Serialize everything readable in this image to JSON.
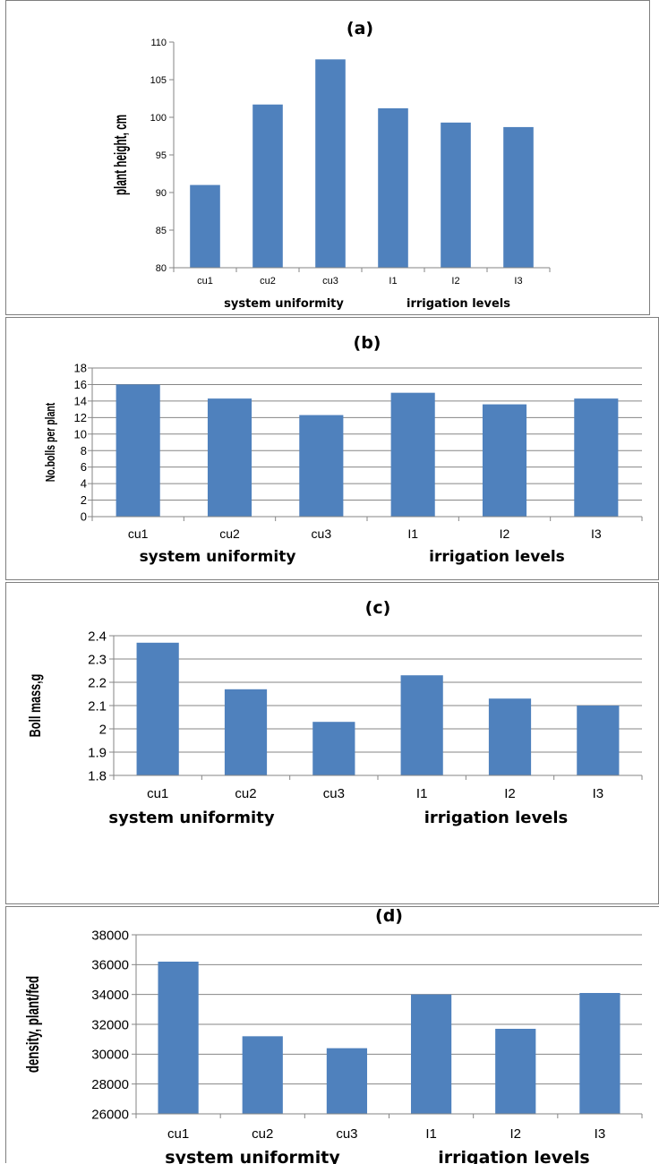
{
  "charts": {
    "bar_color": "#4F81BD",
    "grid_color": "#868686",
    "axis_color": "#868686"
  },
  "chart_data": [
    {
      "type": "bar",
      "title": "(a)",
      "ylabel": "plant height, cm",
      "categories": [
        "cu1",
        "cu2",
        "cu3",
        "I1",
        "I2",
        "I3"
      ],
      "values": [
        91,
        101.7,
        107.7,
        101.2,
        99.3,
        98.7
      ],
      "ylim": [
        80,
        110
      ],
      "yticks": [
        "80",
        "85",
        "90",
        "95",
        "100",
        "105",
        "110"
      ],
      "grid": false,
      "groups": [
        "system uniformity",
        "irrigation levels"
      ]
    },
    {
      "type": "bar",
      "title": "(b)",
      "ylabel": "No.bolls per plant",
      "categories": [
        "cu1",
        "cu2",
        "cu3",
        "I1",
        "I2",
        "I3"
      ],
      "values": [
        16,
        14.3,
        12.3,
        15,
        13.6,
        14.3
      ],
      "ylim": [
        0,
        18
      ],
      "yticks": [
        "0",
        "2",
        "4",
        "6",
        "8",
        "10",
        "12",
        "14",
        "16",
        "18"
      ],
      "grid": true,
      "groups": [
        "system uniformity",
        "irrigation levels"
      ]
    },
    {
      "type": "bar",
      "title": "(c)",
      "ylabel": "Boll mass,g",
      "categories": [
        "cu1",
        "cu2",
        "cu3",
        "I1",
        "I2",
        "I3"
      ],
      "values": [
        2.37,
        2.17,
        2.03,
        2.23,
        2.13,
        2.1
      ],
      "ylim": [
        1.8,
        2.4
      ],
      "yticks": [
        "1.8",
        "1.9",
        "2",
        "2.1",
        "2.2",
        "2.3",
        "2.4"
      ],
      "grid": true,
      "groups": [
        "system uniformity",
        "irrigation levels"
      ]
    },
    {
      "type": "bar",
      "title": "(d)",
      "ylabel": "density, plant/fed",
      "categories": [
        "cu1",
        "cu2",
        "cu3",
        "I1",
        "I2",
        "I3"
      ],
      "values": [
        36200,
        31200,
        30400,
        34000,
        31700,
        34100
      ],
      "ylim": [
        26000,
        38000
      ],
      "yticks": [
        "26000",
        "28000",
        "30000",
        "32000",
        "34000",
        "36000",
        "38000"
      ],
      "grid": true,
      "groups": [
        "system uniformity",
        "irrigation levels"
      ]
    }
  ]
}
